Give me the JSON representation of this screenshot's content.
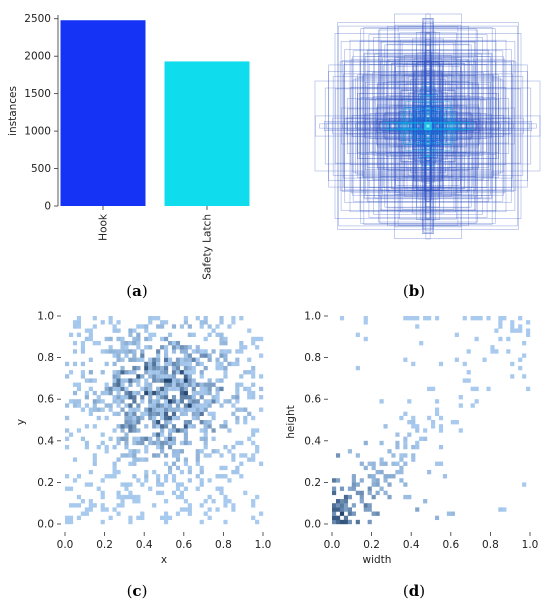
{
  "panel_labels": [
    {
      "open": "(",
      "letter": "a",
      "close": ")"
    },
    {
      "open": "(",
      "letter": "b",
      "close": ")"
    },
    {
      "open": "(",
      "letter": "c",
      "close": ")"
    },
    {
      "open": "(",
      "letter": "d",
      "close": ")"
    }
  ],
  "chart_data": [
    {
      "type": "bar",
      "panel": "a",
      "categories": [
        "Hook",
        "Safety Latch"
      ],
      "values": [
        2480,
        1930
      ],
      "colors": [
        "#1533f5",
        "#0fdcec"
      ],
      "ylabel": "instances",
      "ylim": [
        0,
        2550
      ],
      "yticks": [
        0,
        500,
        1000,
        1500,
        2000,
        2500
      ],
      "ytick_labels": [
        "0",
        "500",
        "1000",
        "1500",
        "2000",
        "2500"
      ],
      "grid": false
    },
    {
      "type": "boxes",
      "panel": "b",
      "description_color": "#1f3fbf",
      "center": [
        0.5,
        0.5
      ],
      "grid": false
    },
    {
      "type": "heatmap",
      "panel": "c",
      "xlabel": "x",
      "ylabel": "y",
      "xlim": [
        0,
        1
      ],
      "ylim": [
        0,
        1
      ],
      "xticks": [
        0.0,
        0.2,
        0.4,
        0.6,
        0.8,
        1.0
      ],
      "yticks": [
        0.0,
        0.2,
        0.4,
        0.6,
        0.8,
        1.0
      ],
      "xtick_labels": [
        "0.0",
        "0.2",
        "0.4",
        "0.6",
        "0.8",
        "1.0"
      ],
      "ytick_labels": [
        "0.0",
        "0.2",
        "0.4",
        "0.6",
        "0.8",
        "1.0"
      ],
      "color": "#4f8fd8",
      "grid": false
    },
    {
      "type": "heatmap",
      "panel": "d",
      "xlabel": "width",
      "ylabel": "height",
      "xlim": [
        0,
        1
      ],
      "ylim": [
        0,
        1
      ],
      "xticks": [
        0.0,
        0.2,
        0.4,
        0.6,
        0.8,
        1.0
      ],
      "yticks": [
        0.0,
        0.2,
        0.4,
        0.6,
        0.8,
        1.0
      ],
      "xtick_labels": [
        "0.0",
        "0.2",
        "0.4",
        "0.6",
        "0.8",
        "1.0"
      ],
      "ytick_labels": [
        "0.0",
        "0.2",
        "0.4",
        "0.6",
        "0.8",
        "1.0"
      ],
      "color": "#4f8fd8",
      "grid": false
    }
  ]
}
